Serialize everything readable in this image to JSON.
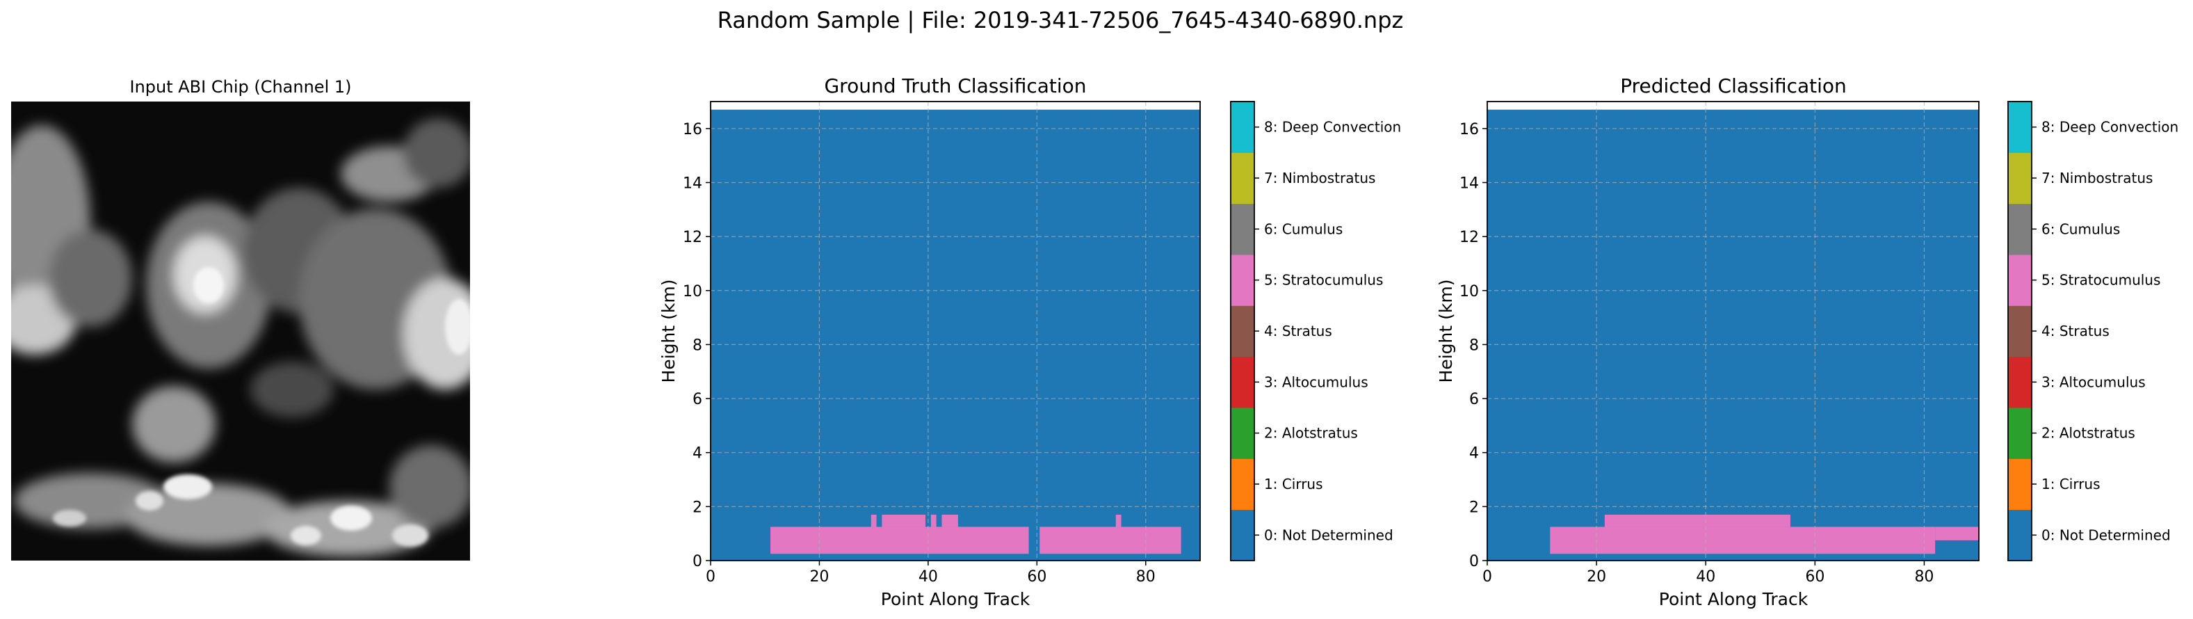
{
  "figure": {
    "suptitle": "Random Sample | File: 2019-341-72506_7645-4340-6890.npz"
  },
  "image_panel": {
    "title": "Input ABI Chip (Channel 1)",
    "colormap": "gray"
  },
  "colorbar": {
    "labels": [
      "0: Not Determined",
      "1: Cirrus",
      "2: Alotstratus",
      "3: Altocumulus",
      "4: Stratus",
      "5: Stratocumulus",
      "6: Cumulus",
      "7: Nimbostratus",
      "8: Deep Convection"
    ],
    "colors": [
      "#1f77b4",
      "#ff7f0e",
      "#2ca02c",
      "#d62728",
      "#8c564b",
      "#e377c2",
      "#7f7f7f",
      "#bcbd22",
      "#17becf"
    ]
  },
  "chart_data": [
    {
      "type": "heatmap",
      "title": "Ground Truth Classification",
      "xlabel": "Point Along Track",
      "ylabel": "Height (km)",
      "xlim": [
        0,
        90
      ],
      "ylim": [
        0,
        17
      ],
      "xticks": [
        0,
        20,
        40,
        60,
        80
      ],
      "yticks": [
        0,
        2,
        4,
        6,
        8,
        10,
        12,
        14,
        16
      ],
      "grid": true,
      "background_class": 0,
      "data_extent": {
        "x": [
          0,
          90
        ],
        "y": [
          0,
          16.7
        ]
      },
      "regions": [
        {
          "class": 5,
          "x": [
            11,
            58.5
          ],
          "y": [
            0.25,
            1.25
          ]
        },
        {
          "class": 5,
          "x": [
            60.5,
            86.5
          ],
          "y": [
            0.25,
            1.25
          ]
        },
        {
          "class": 5,
          "x": [
            29.5,
            30.5
          ],
          "y": [
            1.25,
            1.7
          ]
        },
        {
          "class": 5,
          "x": [
            31.5,
            39.5
          ],
          "y": [
            1.25,
            1.7
          ]
        },
        {
          "class": 5,
          "x": [
            40.5,
            41.5
          ],
          "y": [
            1.25,
            1.7
          ]
        },
        {
          "class": 5,
          "x": [
            42.5,
            45.5
          ],
          "y": [
            1.25,
            1.7
          ]
        },
        {
          "class": 5,
          "x": [
            74.5,
            75.5
          ],
          "y": [
            1.25,
            1.7
          ]
        }
      ]
    },
    {
      "type": "heatmap",
      "title": "Predicted Classification",
      "xlabel": "Point Along Track",
      "ylabel": "Height (km)",
      "xlim": [
        0,
        90
      ],
      "ylim": [
        0,
        17
      ],
      "xticks": [
        0,
        20,
        40,
        60,
        80
      ],
      "yticks": [
        0,
        2,
        4,
        6,
        8,
        10,
        12,
        14,
        16
      ],
      "grid": true,
      "background_class": 0,
      "data_extent": {
        "x": [
          0,
          90
        ],
        "y": [
          0,
          16.7
        ]
      },
      "regions": [
        {
          "class": 5,
          "x": [
            11.5,
            82
          ],
          "y": [
            0.25,
            1.25
          ]
        },
        {
          "class": 5,
          "x": [
            82,
            90
          ],
          "y": [
            0.75,
            1.25
          ]
        },
        {
          "class": 5,
          "x": [
            21.5,
            55.5
          ],
          "y": [
            1.25,
            1.7
          ]
        }
      ]
    }
  ]
}
